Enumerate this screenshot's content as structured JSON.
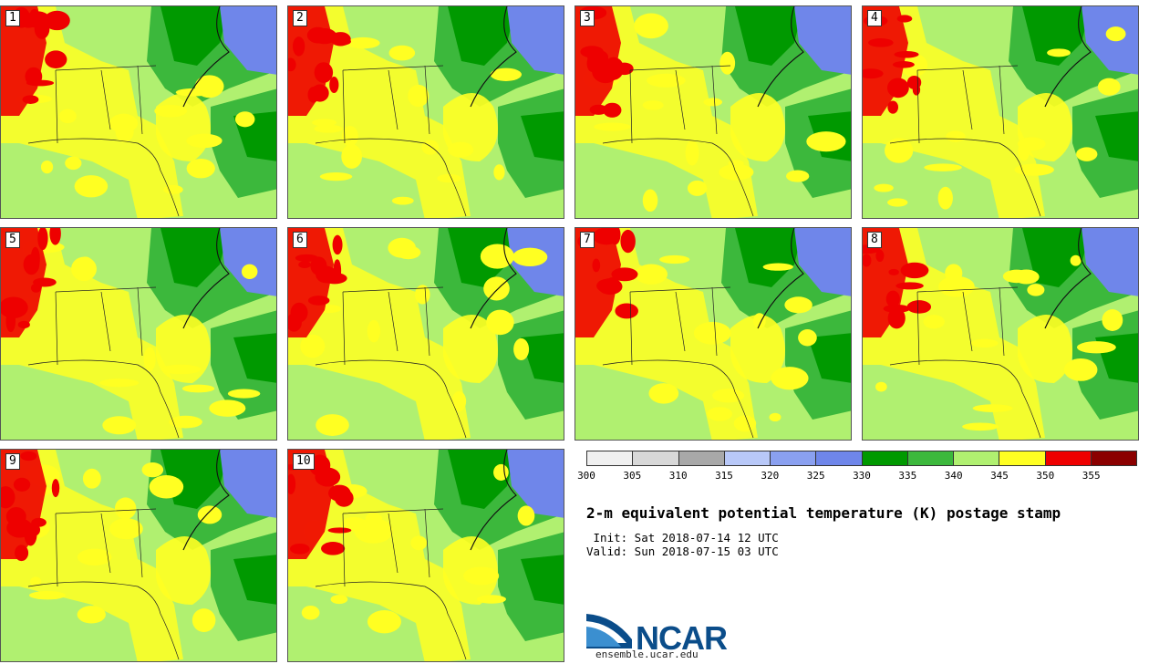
{
  "stamps": [
    {
      "label": "1"
    },
    {
      "label": "2"
    },
    {
      "label": "3"
    },
    {
      "label": "4"
    },
    {
      "label": "5"
    },
    {
      "label": "6"
    },
    {
      "label": "7"
    },
    {
      "label": "8"
    },
    {
      "label": "9"
    },
    {
      "label": "10"
    }
  ],
  "colorbar": {
    "ticks": [
      "300",
      "305",
      "310",
      "315",
      "320",
      "325",
      "330",
      "335",
      "340",
      "345",
      "350",
      "355"
    ],
    "colors": [
      "#f0f0f0",
      "#d8d8d8",
      "#a8a8a8",
      "#b8c8f8",
      "#8aa0f0",
      "#6f86ea",
      "#009900",
      "#3cb83c",
      "#b0f070",
      "#ffff22",
      "#ee0000",
      "#8b0000"
    ]
  },
  "fill_colors": {
    "blue": "#6f86ea",
    "dark_green": "#009900",
    "green": "#3cb83c",
    "light_green": "#b0f070",
    "yellow": "#ffff22",
    "red": "#ee0000"
  },
  "title": "2-m equivalent potential temperature (K) postage stamp",
  "init": " Init: Sat 2018-07-14 12 UTC",
  "valid": "Valid: Sun 2018-07-15 03 UTC",
  "logo_text": "NCAR",
  "url": "ensemble.ucar.edu"
}
